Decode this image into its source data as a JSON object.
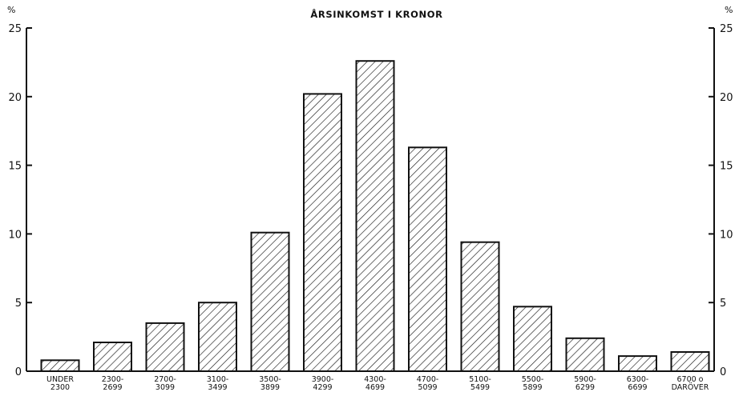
{
  "chart_data": {
    "type": "bar",
    "title": "ÅRSINKOMST I KRONOR",
    "y_unit_left": "%",
    "y_unit_right": "%",
    "ylim": [
      0,
      25
    ],
    "yticks": [
      "0",
      "5",
      "10",
      "15",
      "20",
      "25"
    ],
    "grid": false,
    "pattern": "diagonal-hatch",
    "categories": [
      [
        "UNDER",
        "2300"
      ],
      [
        "2300-",
        "2699"
      ],
      [
        "2700-",
        "3099"
      ],
      [
        "3100-",
        "3499"
      ],
      [
        "3500-",
        "3899"
      ],
      [
        "3900-",
        "4299"
      ],
      [
        "4300-",
        "4699"
      ],
      [
        "4700-",
        "5099"
      ],
      [
        "5100-",
        "5499"
      ],
      [
        "5500-",
        "5899"
      ],
      [
        "5900-",
        "6299"
      ],
      [
        "6300-",
        "6699"
      ],
      [
        "6700 o",
        "DARÖVER"
      ]
    ],
    "values": [
      0.8,
      2.1,
      3.5,
      5.0,
      10.1,
      20.2,
      22.6,
      16.3,
      9.4,
      4.7,
      2.4,
      1.1,
      1.4
    ]
  }
}
